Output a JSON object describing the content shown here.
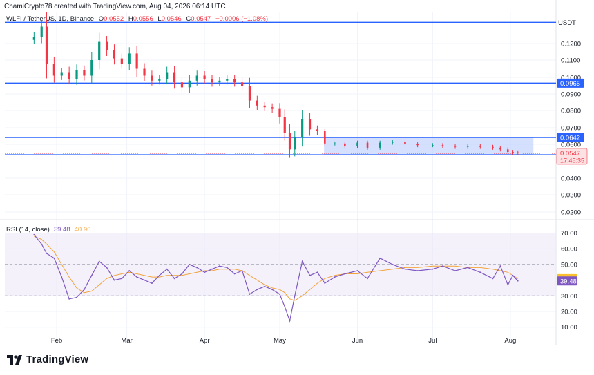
{
  "header": {
    "text": "ChamiCrypto78 created with TradingView.com, Aug 04, 2026 06:14 UTC"
  },
  "legend": {
    "symbol": "WLFI / TetherUS, 1D, Binance",
    "open_label": "O",
    "open": "0.0552",
    "high_label": "H",
    "high": "0.0556",
    "low_label": "L",
    "low": "0.0546",
    "close_label": "C",
    "close": "0.0547",
    "change": "−0.0006 (−1.08%)"
  },
  "currency": "USDT",
  "rsi_legend": {
    "name": "RSI (14, close)",
    "rsi": "39.48",
    "ma": "40.96"
  },
  "footer": {
    "brand": "TradingView",
    "logo_icon": "tradingview-logo-icon"
  },
  "colors": {
    "up": "#089981",
    "down": "#f23645",
    "hline": "#2962ff",
    "zone_fill": "#b3c6ff",
    "rsi": "#7e57c2",
    "rsi_ma": "#f2a33a",
    "rsi_band": "#ede7f6"
  },
  "chart_data": [
    {
      "type": "candlestick",
      "title": "WLFI / TetherUS, 1D, Binance",
      "ylabel": "USDT",
      "ylim": [
        0.005,
        0.136
      ],
      "y_ticks": [
        "0.1200",
        "0.1100",
        "0.1000",
        "0.0900",
        "0.0800",
        "0.0700",
        "0.0600",
        "0.0400",
        "0.0300",
        "0.0200"
      ],
      "x_ticks": [
        "Feb",
        "Mar",
        "Apr",
        "May",
        "Jun",
        "Jul",
        "Aug"
      ],
      "levels": [
        {
          "value": 0.1325,
          "label": ""
        },
        {
          "value": 0.0965,
          "label": "0.0965"
        },
        {
          "value": 0.0642,
          "label": "0.0642"
        },
        {
          "value": 0.0538,
          "label": "0.0538"
        }
      ],
      "zone": {
        "from": "May 19",
        "to": "Aug 10",
        "low": 0.0538,
        "high": 0.0642
      },
      "price_label": {
        "value": 0.0547,
        "text": "0.0547",
        "countdown": "17:45:35"
      },
      "closes": [
        [
          "Jan 23",
          0.124
        ],
        [
          "Jan 26",
          0.13
        ],
        [
          "Jan 28",
          0.108
        ],
        [
          "Jan 31",
          0.101
        ],
        [
          "Feb 03",
          0.103
        ],
        [
          "Feb 06",
          0.099
        ],
        [
          "Feb 09",
          0.104
        ],
        [
          "Feb 12",
          0.101
        ],
        [
          "Feb 15",
          0.11
        ],
        [
          "Feb 18",
          0.121
        ],
        [
          "Feb 21",
          0.116
        ],
        [
          "Feb 24",
          0.111
        ],
        [
          "Feb 27",
          0.108
        ],
        [
          "Mar 02",
          0.114
        ],
        [
          "Mar 05",
          0.105
        ],
        [
          "Mar 08",
          0.101
        ],
        [
          "Mar 11",
          0.098
        ],
        [
          "Mar 14",
          0.099
        ],
        [
          "Mar 17",
          0.103
        ],
        [
          "Mar 20",
          0.097
        ],
        [
          "Mar 23",
          0.094
        ],
        [
          "Mar 26",
          0.098
        ],
        [
          "Mar 29",
          0.101
        ],
        [
          "Apr 01",
          0.099
        ],
        [
          "Apr 04",
          0.097
        ],
        [
          "Apr 07",
          0.098
        ],
        [
          "Apr 10",
          0.099
        ],
        [
          "Apr 13",
          0.097
        ],
        [
          "Apr 16",
          0.095
        ],
        [
          "Apr 19",
          0.086
        ],
        [
          "Apr 22",
          0.083
        ],
        [
          "Apr 25",
          0.082
        ],
        [
          "Apr 28",
          0.081
        ],
        [
          "May 01",
          0.076
        ],
        [
          "May 03",
          0.067
        ],
        [
          "May 05",
          0.057
        ],
        [
          "May 07",
          0.064
        ],
        [
          "May 10",
          0.075
        ],
        [
          "May 13",
          0.069
        ],
        [
          "May 16",
          0.068
        ],
        [
          "May 19",
          0.0605
        ],
        [
          "May 23",
          0.0605
        ],
        [
          "May 27",
          0.059
        ],
        [
          "Jun 01",
          0.061
        ],
        [
          "Jun 05",
          0.058
        ],
        [
          "Jun 10",
          0.061
        ],
        [
          "Jun 15",
          0.0615
        ],
        [
          "Jun 20",
          0.06
        ],
        [
          "Jun 25",
          0.0595
        ],
        [
          "Jul 01",
          0.0595
        ],
        [
          "Jul 05",
          0.059
        ],
        [
          "Jul 10",
          0.0585
        ],
        [
          "Jul 15",
          0.059
        ],
        [
          "Jul 20",
          0.0585
        ],
        [
          "Jul 25",
          0.058
        ],
        [
          "Jul 28",
          0.057
        ],
        [
          "Jul 31",
          0.0555
        ],
        [
          "Aug 02",
          0.0552
        ],
        [
          "Aug 04",
          0.0547
        ]
      ]
    },
    {
      "type": "line",
      "title": "RSI (14, close)",
      "ylim": [
        5,
        75
      ],
      "y_ticks": [
        "70.00",
        "60.00",
        "50.00",
        "30.00",
        "20.00",
        "10.00"
      ],
      "band": [
        30,
        70
      ],
      "reference_lines": [
        30,
        50,
        70
      ],
      "value_labels": [
        "40.96",
        "39.48"
      ],
      "series": [
        {
          "name": "RSI",
          "values": [
            [
              "Jan 23",
              69
            ],
            [
              "Jan 26",
              63
            ],
            [
              "Jan 28",
              57
            ],
            [
              "Jan 31",
              54
            ],
            [
              "Feb 03",
              42
            ],
            [
              "Feb 06",
              28
            ],
            [
              "Feb 09",
              29
            ],
            [
              "Feb 12",
              34
            ],
            [
              "Feb 15",
              43
            ],
            [
              "Feb 18",
              52
            ],
            [
              "Feb 21",
              48
            ],
            [
              "Feb 24",
              40
            ],
            [
              "Feb 27",
              41
            ],
            [
              "Mar 02",
              46
            ],
            [
              "Mar 05",
              42
            ],
            [
              "Mar 08",
              40
            ],
            [
              "Mar 11",
              38
            ],
            [
              "Mar 14",
              43
            ],
            [
              "Mar 17",
              47
            ],
            [
              "Mar 20",
              41
            ],
            [
              "Mar 23",
              44
            ],
            [
              "Mar 26",
              50
            ],
            [
              "Mar 29",
              48
            ],
            [
              "Apr 01",
              45
            ],
            [
              "Apr 04",
              47
            ],
            [
              "Apr 07",
              49
            ],
            [
              "Apr 10",
              48
            ],
            [
              "Apr 13",
              44
            ],
            [
              "Apr 16",
              46
            ],
            [
              "Apr 19",
              31
            ],
            [
              "Apr 22",
              34
            ],
            [
              "Apr 25",
              36
            ],
            [
              "Apr 28",
              34
            ],
            [
              "May 01",
              31
            ],
            [
              "May 03",
              23
            ],
            [
              "May 05",
              14
            ],
            [
              "May 07",
              30
            ],
            [
              "May 10",
              52
            ],
            [
              "May 13",
              43
            ],
            [
              "May 16",
              45
            ],
            [
              "May 19",
              38
            ],
            [
              "May 23",
              42
            ],
            [
              "May 27",
              44
            ],
            [
              "Jun 01",
              46
            ],
            [
              "Jun 05",
              41
            ],
            [
              "Jun 10",
              54
            ],
            [
              "Jun 15",
              50
            ],
            [
              "Jun 20",
              47
            ],
            [
              "Jun 25",
              46
            ],
            [
              "Jul 01",
              47
            ],
            [
              "Jul 05",
              49
            ],
            [
              "Jul 10",
              46
            ],
            [
              "Jul 15",
              48
            ],
            [
              "Jul 20",
              45
            ],
            [
              "Jul 25",
              41
            ],
            [
              "Jul 28",
              49
            ],
            [
              "Jul 31",
              37
            ],
            [
              "Aug 02",
              43
            ],
            [
              "Aug 04",
              39.48
            ]
          ]
        },
        {
          "name": "RSI-based MA",
          "values": [
            [
              "Jan 23",
              68
            ],
            [
              "Jan 26",
              66
            ],
            [
              "Jan 28",
              63
            ],
            [
              "Jan 31",
              58
            ],
            [
              "Feb 03",
              50
            ],
            [
              "Feb 06",
              42
            ],
            [
              "Feb 09",
              35
            ],
            [
              "Feb 12",
              32
            ],
            [
              "Feb 15",
              33
            ],
            [
              "Feb 18",
              37
            ],
            [
              "Feb 21",
              41
            ],
            [
              "Feb 24",
              43
            ],
            [
              "Feb 27",
              44
            ],
            [
              "Mar 02",
              45
            ],
            [
              "Mar 05",
              44
            ],
            [
              "Mar 08",
              43
            ],
            [
              "Mar 11",
              42
            ],
            [
              "Mar 14",
              42
            ],
            [
              "Mar 17",
              43
            ],
            [
              "Mar 20",
              43
            ],
            [
              "Mar 23",
              43
            ],
            [
              "Mar 26",
              44
            ],
            [
              "Mar 29",
              45
            ],
            [
              "Apr 01",
              46
            ],
            [
              "Apr 04",
              46
            ],
            [
              "Apr 07",
              47
            ],
            [
              "Apr 10",
              47
            ],
            [
              "Apr 13",
              47
            ],
            [
              "Apr 16",
              46
            ],
            [
              "Apr 19",
              43
            ],
            [
              "Apr 22",
              40
            ],
            [
              "Apr 25",
              37
            ],
            [
              "Apr 28",
              35
            ],
            [
              "May 01",
              34
            ],
            [
              "May 03",
              32
            ],
            [
              "May 05",
              28
            ],
            [
              "May 07",
              27
            ],
            [
              "May 10",
              30
            ],
            [
              "May 13",
              34
            ],
            [
              "May 16",
              38
            ],
            [
              "May 19",
              41
            ],
            [
              "May 23",
              43
            ],
            [
              "May 27",
              44
            ],
            [
              "Jun 01",
              44
            ],
            [
              "Jun 05",
              45
            ],
            [
              "Jun 10",
              46
            ],
            [
              "Jun 15",
              47
            ],
            [
              "Jun 20",
              48
            ],
            [
              "Jun 25",
              48
            ],
            [
              "Jul 01",
              49
            ],
            [
              "Jul 05",
              49
            ],
            [
              "Jul 10",
              49
            ],
            [
              "Jul 15",
              48
            ],
            [
              "Jul 20",
              48
            ],
            [
              "Jul 25",
              47
            ],
            [
              "Jul 28",
              46
            ],
            [
              "Jul 31",
              45
            ],
            [
              "Aug 02",
              43
            ],
            [
              "Aug 04",
              40.96
            ]
          ]
        }
      ]
    }
  ]
}
